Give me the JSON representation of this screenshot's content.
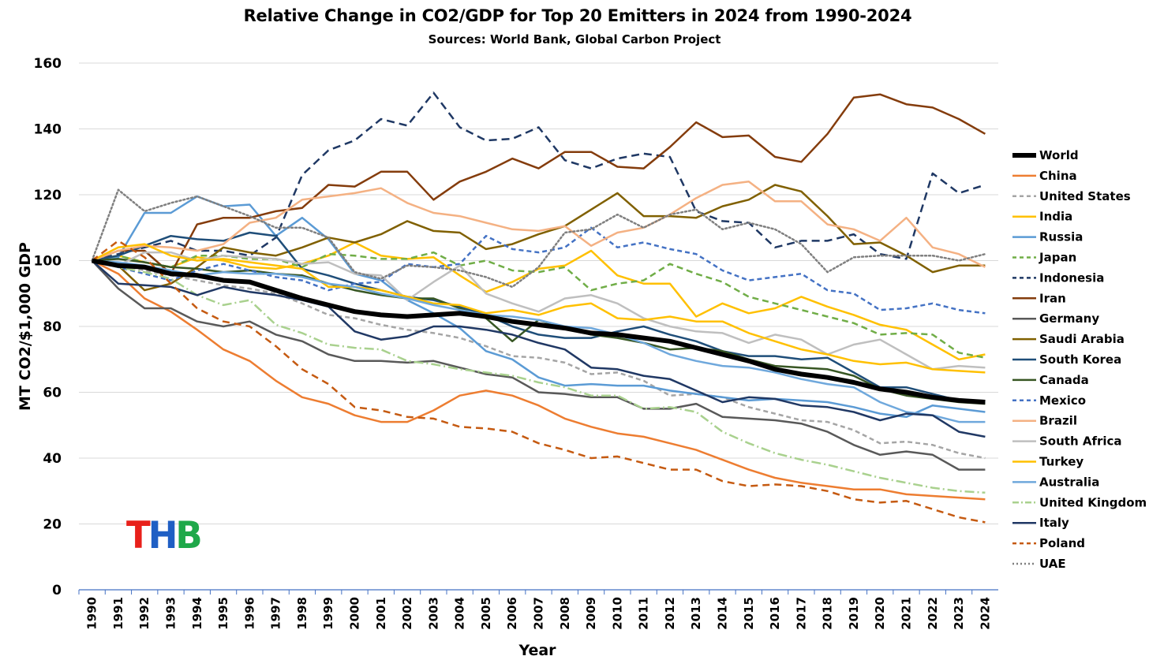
{
  "chart_data": {
    "type": "line",
    "title": "Relative Change in CO2/GDP for Top 20 Emitters in 2024 from 1990-2024",
    "subtitle": "Sources: World Bank, Global Carbon Project",
    "xlabel": "Year",
    "ylabel": "MT CO2/$1,000 GDP",
    "ylim": [
      0,
      160
    ],
    "yticks": [
      0,
      20,
      40,
      60,
      80,
      100,
      120,
      140,
      160
    ],
    "grid": true,
    "legend_position": "right",
    "categories": [
      "1990",
      "1991",
      "1992",
      "1993",
      "1994",
      "1995",
      "1996",
      "1997",
      "1998",
      "1999",
      "2000",
      "2001",
      "2002",
      "2003",
      "2004",
      "2005",
      "2006",
      "2007",
      "2008",
      "2009",
      "2010",
      "2011",
      "2012",
      "2013",
      "2014",
      "2015",
      "2016",
      "2017",
      "2018",
      "2019",
      "2020",
      "2021",
      "2022",
      "2023",
      "2024"
    ],
    "series": [
      {
        "name": "World",
        "color": "#000000",
        "dash": "solid",
        "width": 6,
        "values": [
          100,
          98.5,
          98,
          96,
          95.5,
          94,
          93.5,
          91,
          88.5,
          86.5,
          84.5,
          83.5,
          83,
          83.5,
          84,
          83,
          81.5,
          80.5,
          79.5,
          78,
          77.5,
          76.5,
          75.5,
          73.5,
          71.5,
          69.5,
          67,
          65.5,
          64.5,
          63,
          61,
          60,
          58.5,
          57.5,
          57
        ]
      },
      {
        "name": "China",
        "color": "#ed7d31",
        "dash": "solid",
        "width": 2.5,
        "values": [
          100,
          96,
          88.5,
          84.5,
          79,
          73,
          69.5,
          63.5,
          58.5,
          56.5,
          53,
          51,
          51,
          54.5,
          59,
          60.5,
          59,
          56,
          52,
          49.5,
          47.5,
          46.5,
          44.5,
          42.5,
          39.5,
          36.5,
          34,
          32.5,
          31.5,
          30.5,
          30.5,
          29,
          28.5,
          28,
          27.5
        ]
      },
      {
        "name": "United States",
        "color": "#a5a5a5",
        "dash": "6,4",
        "width": 2.5,
        "values": [
          100,
          99,
          97,
          95.5,
          94,
          92.5,
          91.5,
          90,
          87,
          83.5,
          82.5,
          80.5,
          79,
          78,
          76.5,
          74,
          71,
          70.5,
          69,
          65.5,
          66,
          63.5,
          59,
          59.5,
          58.5,
          55.5,
          53.5,
          51.5,
          51,
          48.5,
          44.5,
          45,
          44,
          41.5,
          40
        ]
      },
      {
        "name": "India",
        "color": "#ffc000",
        "dash": "solid",
        "width": 2.5,
        "values": [
          100,
          101.5,
          99.5,
          98,
          101,
          100,
          98,
          97.5,
          99,
          101.5,
          105.5,
          101.5,
          100.5,
          101,
          95.5,
          90.5,
          93.5,
          97.5,
          98.5,
          103,
          95.5,
          93,
          93,
          83,
          87,
          84,
          85.5,
          89,
          86,
          83.5,
          80.5,
          79,
          74.5,
          70,
          71.5
        ]
      },
      {
        "name": "Russia",
        "color": "#5b9bd5",
        "dash": "solid",
        "width": 2.5,
        "values": [
          100,
          101,
          114.5,
          114.5,
          119.5,
          116.5,
          117,
          107.5,
          113,
          106.5,
          96,
          94,
          88,
          84,
          79.5,
          72.5,
          70,
          64.5,
          62,
          62.5,
          62,
          62,
          60.5,
          59.5,
          58.5,
          57.5,
          58,
          57.5,
          57,
          55.5,
          53.5,
          52.5,
          56,
          55,
          54
        ]
      },
      {
        "name": "Japan",
        "color": "#70ad47",
        "dash": "8,5",
        "width": 2.5,
        "values": [
          100,
          101.5,
          99.5,
          98,
          101.5,
          101.5,
          100.5,
          100.5,
          98,
          102,
          101.5,
          100.5,
          100.5,
          102.5,
          98.5,
          100,
          97,
          96.5,
          98,
          91,
          93,
          94,
          99,
          96,
          93.5,
          89,
          87,
          85,
          83,
          81,
          77.5,
          78,
          77.5,
          72,
          70.5
        ]
      },
      {
        "name": "Indonesia",
        "color": "#1f3864",
        "dash": "10,6",
        "width": 2.5,
        "values": [
          100,
          102,
          104,
          106,
          103,
          103,
          101.5,
          107,
          126,
          133.5,
          136.5,
          143,
          141,
          151,
          140.5,
          136.5,
          137,
          140.5,
          130.5,
          128,
          131,
          132.5,
          131.5,
          115,
          112,
          111.5,
          104,
          106,
          106,
          108,
          102,
          100.5,
          126.5,
          120.5,
          123
        ]
      },
      {
        "name": "Iran",
        "color": "#843c0c",
        "dash": "solid",
        "width": 2.5,
        "values": [
          100,
          103,
          103,
          96,
          111,
          113,
          113,
          115,
          116,
          123,
          122.5,
          127,
          127,
          118.5,
          124,
          127,
          131,
          128,
          133,
          133,
          128.5,
          128,
          134.5,
          142,
          137.5,
          138,
          131.5,
          130,
          138.5,
          149.5,
          150.5,
          147.5,
          146.5,
          143,
          138.5
        ]
      },
      {
        "name": "Germany",
        "color": "#595959",
        "dash": "solid",
        "width": 2.5,
        "values": [
          100,
          91.5,
          85.5,
          85.5,
          81.5,
          80,
          81.5,
          77.5,
          75.5,
          71.5,
          69.5,
          69.5,
          69,
          69.5,
          67.5,
          65.5,
          64.5,
          60,
          59.5,
          58.5,
          58.5,
          55,
          55,
          56.5,
          52.5,
          52,
          51.5,
          50.5,
          48,
          44,
          41,
          42,
          41,
          36.5,
          36.5
        ]
      },
      {
        "name": "Saudi Arabia",
        "color": "#806000",
        "dash": "solid",
        "width": 2.5,
        "values": [
          100,
          98.5,
          91,
          93,
          98,
          104,
          102.5,
          101.5,
          104,
          107,
          105.5,
          108,
          112,
          109,
          108.5,
          103.5,
          105,
          108,
          110.5,
          115.5,
          120.5,
          113.5,
          113.5,
          113,
          116.5,
          118.5,
          123,
          121,
          113.5,
          105,
          105.5,
          101.5,
          96.5,
          98.5,
          98.5
        ]
      },
      {
        "name": "South Korea",
        "color": "#1f4e79",
        "dash": "solid",
        "width": 2.5,
        "values": [
          100,
          101.5,
          104.5,
          107.5,
          106.5,
          106,
          108.5,
          107.5,
          97.5,
          95.5,
          93,
          91,
          89,
          88,
          86,
          83.5,
          80,
          77.5,
          76.5,
          76.5,
          78.5,
          80,
          77.5,
          75.5,
          72.5,
          71,
          71,
          70,
          70.5,
          66,
          61.5,
          61.5,
          59.5,
          57.5,
          57
        ]
      },
      {
        "name": "Canada",
        "color": "#375623",
        "dash": "solid",
        "width": 2.5,
        "values": [
          100,
          100.5,
          99.5,
          98,
          97.5,
          96.5,
          97,
          96,
          95.5,
          93,
          91,
          89.5,
          88.5,
          88.5,
          85.5,
          82.5,
          75.5,
          82,
          79.5,
          77.5,
          76.5,
          75,
          73,
          73.5,
          72.5,
          70,
          68,
          67.5,
          67,
          65,
          61,
          59,
          58,
          57,
          56.5
        ]
      },
      {
        "name": "Mexico",
        "color": "#4472c4",
        "dash": "6,4",
        "width": 2.5,
        "values": [
          100,
          98,
          96,
          94,
          97,
          99,
          97,
          95,
          94,
          91,
          93,
          93.5,
          99,
          98,
          99,
          107.5,
          103.5,
          102.5,
          104,
          110,
          104,
          105.5,
          103.5,
          102,
          97,
          94,
          95,
          96,
          91,
          90,
          85,
          85.5,
          87,
          85,
          84
        ]
      },
      {
        "name": "Brazil",
        "color": "#f4b183",
        "dash": "solid",
        "width": 2.5,
        "values": [
          100,
          103,
          104.5,
          104,
          103,
          105,
          111.5,
          113,
          118.5,
          119.5,
          120.5,
          122,
          117.5,
          114.5,
          113.5,
          111.5,
          109.5,
          109,
          110.5,
          104.5,
          108.5,
          110,
          114,
          119,
          123,
          124,
          118,
          118,
          111,
          109.5,
          106,
          113,
          104,
          102,
          98
        ]
      },
      {
        "name": "South Africa",
        "color": "#bfbfbf",
        "dash": "solid",
        "width": 2.5,
        "values": [
          100,
          98.5,
          102.5,
          102.5,
          100,
          101.5,
          101,
          100.5,
          99,
          99.5,
          96,
          95.5,
          88,
          93.5,
          98.5,
          90,
          87,
          84.5,
          88.5,
          89.5,
          87,
          82.5,
          80,
          78.5,
          78,
          75,
          77.5,
          76,
          71.5,
          74.5,
          76,
          71.5,
          67,
          68,
          67.5
        ]
      },
      {
        "name": "Turkey",
        "color": "#ffc000",
        "dash": "solid",
        "width": 2.5,
        "values": [
          100,
          104,
          105,
          101.5,
          100,
          100.5,
          99.5,
          98.5,
          97.5,
          92,
          92,
          91,
          89,
          87,
          86.5,
          84,
          85,
          83.5,
          86,
          87,
          82.5,
          82,
          83,
          81.5,
          81.5,
          78,
          75.5,
          73,
          71.5,
          69.5,
          68.5,
          69,
          67,
          66.5,
          66
        ]
      },
      {
        "name": "Australia",
        "color": "#6fa8dc",
        "dash": "solid",
        "width": 2.5,
        "values": [
          100,
          99.5,
          98.5,
          97,
          95.5,
          96.5,
          96,
          96,
          95,
          93,
          92,
          90,
          88.5,
          86.5,
          85,
          83.5,
          83,
          82,
          80,
          79.5,
          77.5,
          75,
          71.5,
          69.5,
          68,
          67.5,
          66,
          64,
          62.5,
          61.5,
          57,
          54,
          53,
          51,
          51
        ]
      },
      {
        "name": "United Kingdom",
        "color": "#a9d18e",
        "dash": "12,4,2,4",
        "width": 2.5,
        "values": [
          100,
          98,
          96.5,
          94.5,
          89.5,
          86.5,
          88,
          80.5,
          78,
          74.5,
          73.5,
          73,
          69.5,
          68.5,
          67,
          66,
          65,
          63,
          61.5,
          59,
          59,
          55,
          55.5,
          54,
          48,
          44.5,
          41.5,
          39.5,
          38,
          36,
          34,
          32.5,
          31,
          30,
          29.5
        ]
      },
      {
        "name": "Italy",
        "color": "#203864",
        "dash": "solid",
        "width": 2.5,
        "values": [
          100,
          93,
          92.5,
          92,
          89.5,
          92,
          90.5,
          89.5,
          88,
          86,
          78.5,
          76,
          77,
          80,
          80,
          79,
          77.5,
          75,
          73,
          67.5,
          67,
          65,
          64,
          60.5,
          57,
          58.5,
          58,
          56,
          55.5,
          54,
          51.5,
          53.5,
          53,
          48,
          46.5
        ]
      },
      {
        "name": "Poland",
        "color": "#c55a11",
        "dash": "9,6",
        "width": 2.5,
        "values": [
          100,
          106,
          101,
          93,
          85.5,
          81.5,
          80,
          74,
          67,
          62.5,
          55.5,
          54.5,
          52.5,
          52,
          49.5,
          49,
          48,
          44.5,
          42.5,
          40,
          40.5,
          38.5,
          36.5,
          36.5,
          33,
          31.5,
          32,
          31.5,
          30,
          27.5,
          26.5,
          27,
          24.5,
          22,
          20.5
        ]
      },
      {
        "name": "UAE",
        "color": "#7f7f7f",
        "dash": "2,3",
        "width": 2.5,
        "values": [
          100,
          121.5,
          115,
          117.5,
          119.5,
          116.5,
          113.5,
          110,
          110,
          107,
          96.5,
          94.5,
          98.5,
          98,
          97,
          95,
          92,
          98,
          108.5,
          109.5,
          114,
          110,
          114,
          115.5,
          109.5,
          111.5,
          109.5,
          105,
          96.5,
          101,
          101.5,
          101.5,
          101.5,
          100,
          102
        ]
      }
    ]
  },
  "logo": {
    "letters": [
      "T",
      "H",
      "B"
    ],
    "colors": [
      "#e8201a",
      "#1f5fc4",
      "#1fa84a"
    ]
  }
}
